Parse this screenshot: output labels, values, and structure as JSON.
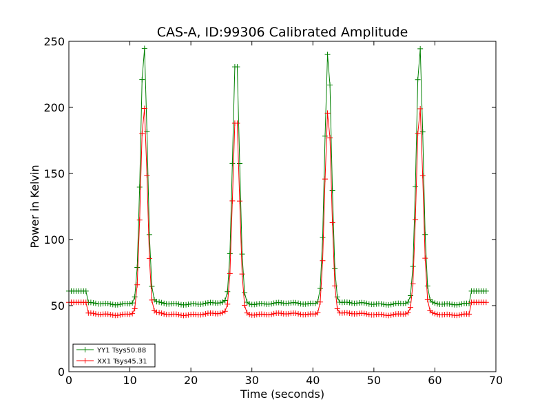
{
  "chart_data": {
    "type": "line",
    "title": "CAS-A, ID:99306 Calibrated Amplitude",
    "xlabel": "Time (seconds)",
    "ylabel": "Power in Kelvin",
    "xlim": [
      0,
      70
    ],
    "ylim": [
      0,
      250
    ],
    "x_ticks": [
      0,
      10,
      20,
      30,
      40,
      50,
      60,
      70
    ],
    "y_ticks": [
      0,
      50,
      100,
      150,
      200,
      250
    ],
    "grid": false,
    "legend_position": "lower-left",
    "marker": "plus",
    "scan": {
      "start": 0.0,
      "step": 0.4,
      "end": 68.4,
      "cal_segments": [
        [
          0.0,
          2.8
        ],
        [
          66.0,
          68.4
        ]
      ],
      "peaks": [
        12.3,
        27.4,
        42.5,
        57.5
      ],
      "peak_width_sigma": 0.55
    },
    "series": [
      {
        "name": "YY1 Tsys50.88",
        "label": "YY1 Tsys50.88",
        "color": "#008000",
        "cal_level": 61,
        "baseline": 51.5,
        "peak_heights": [
          246,
          242,
          242,
          246
        ]
      },
      {
        "name": "XX1 Tsys45.31",
        "label": "XX1 Tsys45.31",
        "color": "#ff0000",
        "cal_level": 52.5,
        "baseline": 43.5,
        "peak_heights": [
          200,
          197,
          197,
          200
        ]
      }
    ]
  }
}
